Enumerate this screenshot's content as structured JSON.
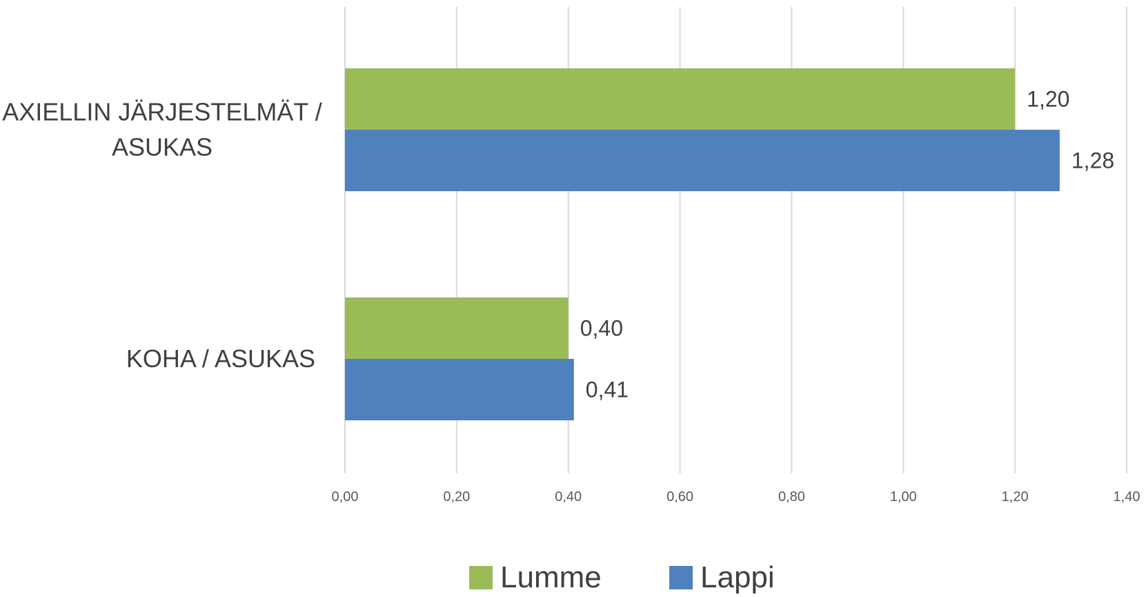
{
  "chart_data": {
    "type": "bar",
    "orientation": "horizontal",
    "categories": [
      [
        "AXIELLIN JÄRJESTELMÄT /",
        "ASUKAS"
      ],
      [
        "KOHA / ASUKAS"
      ]
    ],
    "series": [
      {
        "name": "Lumme",
        "color": "#9bbb59",
        "values": [
          1.2,
          0.4
        ],
        "labels": [
          "1,20",
          "0,40"
        ]
      },
      {
        "name": "Lappi",
        "color": "#4f81bd",
        "values": [
          1.28,
          0.41
        ],
        "labels": [
          "1,28",
          "0,41"
        ]
      }
    ],
    "xlim": [
      0,
      1.4
    ],
    "xticks": [
      0,
      0.2,
      0.4,
      0.6,
      0.8,
      1.0,
      1.2,
      1.4
    ],
    "xtick_labels": [
      "0,00",
      "0,20",
      "0,40",
      "0,60",
      "0,80",
      "1,00",
      "1,20",
      "1,40"
    ],
    "grid": true,
    "legend_position": "bottom",
    "title": "",
    "xlabel": "",
    "ylabel": ""
  }
}
